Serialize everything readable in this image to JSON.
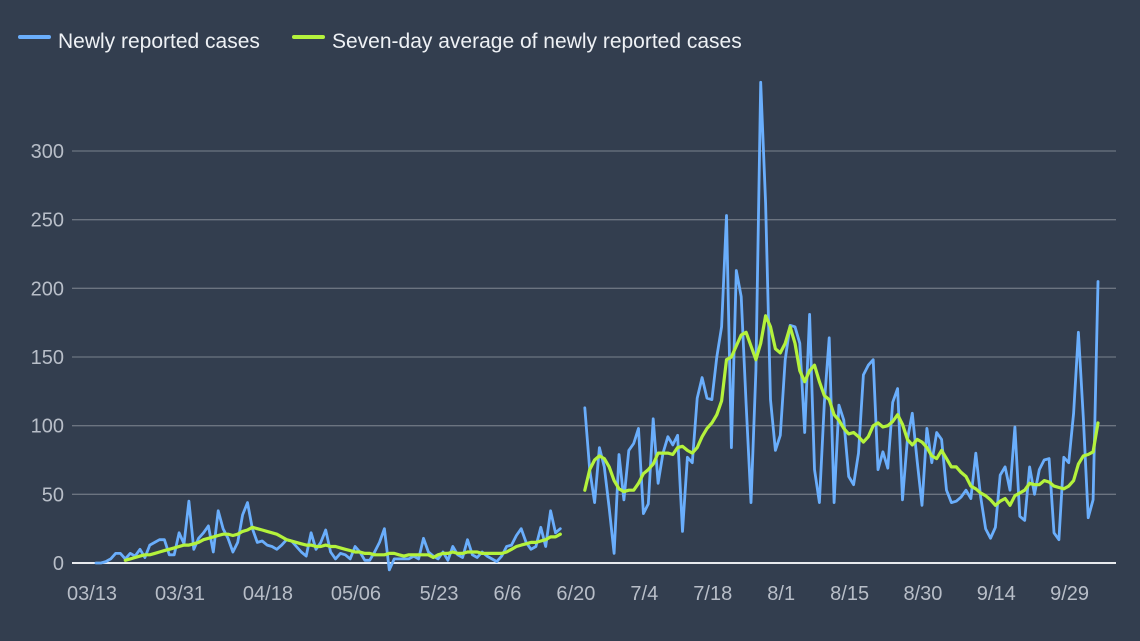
{
  "chart_data": {
    "type": "line",
    "title": "",
    "xlabel": "",
    "ylabel": "",
    "ylim": [
      0,
      350
    ],
    "yticks": [
      0,
      50,
      100,
      150,
      200,
      250,
      300
    ],
    "grid": true,
    "legend_placement": "top-left",
    "colors": {
      "background": "#333e4f",
      "grid": "#6c7480",
      "baseline": "#e8eaee",
      "new_cases": "#6aaefc",
      "average": "#b4f23c"
    },
    "xticks": [
      {
        "label": "03/13",
        "date": "03/13"
      },
      {
        "label": "03/31",
        "date": "03/31"
      },
      {
        "label": "04/18",
        "date": "04/18"
      },
      {
        "label": "05/06",
        "date": "05/06"
      },
      {
        "label": "5/23",
        "date": "05/23"
      },
      {
        "label": "6/6",
        "date": "06/06"
      },
      {
        "label": "6/20",
        "date": "06/20"
      },
      {
        "label": "7/4",
        "date": "07/04"
      },
      {
        "label": "7/18",
        "date": "07/18"
      },
      {
        "label": "8/1",
        "date": "08/01"
      },
      {
        "label": "8/15",
        "date": "08/15"
      },
      {
        "label": "8/30",
        "date": "08/30"
      },
      {
        "label": "9/14",
        "date": "09/14"
      },
      {
        "label": "9/29",
        "date": "09/29"
      }
    ],
    "x": [
      "03/13",
      "03/14",
      "03/15",
      "03/16",
      "03/17",
      "03/18",
      "03/19",
      "03/20",
      "03/21",
      "03/22",
      "03/23",
      "03/24",
      "03/25",
      "03/26",
      "03/27",
      "03/28",
      "03/29",
      "03/30",
      "03/31",
      "04/01",
      "04/02",
      "04/03",
      "04/04",
      "04/05",
      "04/06",
      "04/07",
      "04/08",
      "04/09",
      "04/10",
      "04/11",
      "04/12",
      "04/13",
      "04/14",
      "04/15",
      "04/16",
      "04/17",
      "04/18",
      "04/19",
      "04/20",
      "04/21",
      "04/22",
      "04/23",
      "04/24",
      "04/25",
      "04/26",
      "04/27",
      "04/28",
      "04/29",
      "04/30",
      "05/01",
      "05/02",
      "05/03",
      "05/04",
      "05/05",
      "05/06",
      "05/07",
      "05/08",
      "05/09",
      "05/10",
      "05/11",
      "05/12",
      "05/13",
      "05/14",
      "05/15",
      "05/16",
      "05/17",
      "05/18",
      "05/19",
      "05/20",
      "05/21",
      "05/22",
      "05/23",
      "05/24",
      "05/25",
      "05/26",
      "05/27",
      "05/28",
      "05/29",
      "05/30",
      "05/31",
      "06/01",
      "06/02",
      "06/03",
      "06/04",
      "06/05",
      "06/06",
      "06/07",
      "06/08",
      "06/09",
      "06/10",
      "06/11",
      "06/12",
      "06/13",
      "06/14",
      "06/15",
      "06/16",
      "06/17",
      "06/18",
      "06/19",
      "06/20",
      "06/21",
      "06/22",
      "06/23",
      "06/24",
      "06/25",
      "06/26",
      "06/27",
      "06/28",
      "06/29",
      "06/30",
      "07/01",
      "07/02",
      "07/03",
      "07/04",
      "07/05",
      "07/06",
      "07/07",
      "07/08",
      "07/09",
      "07/10",
      "07/11",
      "07/12",
      "07/13",
      "07/14",
      "07/15",
      "07/16",
      "07/17",
      "07/18",
      "07/19",
      "07/20",
      "07/21",
      "07/22",
      "07/23",
      "07/24",
      "07/25",
      "07/26",
      "07/27",
      "07/28",
      "07/29",
      "07/30",
      "07/31",
      "08/01",
      "08/02",
      "08/03",
      "08/04",
      "08/05",
      "08/06",
      "08/07",
      "08/08",
      "08/09",
      "08/10",
      "08/11",
      "08/12",
      "08/13",
      "08/14",
      "08/15",
      "08/16",
      "08/17",
      "08/18",
      "08/19",
      "08/20",
      "08/21",
      "08/22",
      "08/23",
      "08/24",
      "08/25",
      "08/26",
      "08/27",
      "08/28",
      "08/29",
      "08/30",
      "08/31",
      "09/01",
      "09/02",
      "09/03",
      "09/04",
      "09/05",
      "09/06",
      "09/07",
      "09/08",
      "09/09",
      "09/10",
      "09/11",
      "09/12",
      "09/13",
      "09/14",
      "09/15",
      "09/16",
      "09/17",
      "09/18",
      "09/19",
      "09/20",
      "09/21",
      "09/22",
      "09/23",
      "09/24",
      "09/25",
      "09/26",
      "09/27",
      "09/28",
      "09/29",
      "09/30",
      "10/01",
      "10/02",
      "10/03",
      "10/04"
    ],
    "series": [
      {
        "name": "Newly reported cases",
        "key": "new_cases",
        "values": [
          0,
          0,
          1,
          3,
          7,
          7,
          3,
          7,
          5,
          10,
          4,
          13,
          15,
          17,
          17,
          6,
          6,
          22,
          14,
          45,
          10,
          18,
          22,
          27,
          8,
          38,
          25,
          18,
          8,
          15,
          35,
          44,
          25,
          15,
          16,
          13,
          12,
          10,
          13,
          17,
          16,
          12,
          8,
          5,
          22,
          10,
          15,
          24,
          8,
          3,
          7,
          6,
          3,
          12,
          8,
          2,
          2,
          8,
          15,
          25,
          -5,
          3,
          3,
          3,
          3,
          5,
          3,
          18,
          8,
          5,
          3,
          8,
          2,
          12,
          6,
          4,
          17,
          6,
          4,
          8,
          5,
          3,
          1,
          5,
          12,
          13,
          20,
          25,
          15,
          10,
          12,
          26,
          12,
          38,
          22,
          25,
          null,
          null,
          null,
          null,
          113,
          68,
          44,
          84,
          70,
          40,
          7,
          79,
          46,
          82,
          87,
          98,
          36,
          43,
          105,
          58,
          80,
          92,
          86,
          93,
          23,
          77,
          73,
          120,
          135,
          120,
          119,
          150,
          172,
          253,
          84,
          213,
          194,
          116,
          44,
          140,
          350,
          262,
          119,
          82,
          93,
          148,
          173,
          172,
          160,
          95,
          181,
          68,
          44,
          116,
          164,
          44,
          115,
          104,
          63,
          57,
          80,
          137,
          144,
          148,
          68,
          81,
          69,
          117,
          127,
          46,
          90,
          109,
          74,
          42,
          98,
          73,
          95,
          90,
          53,
          44,
          45,
          48,
          53,
          47,
          80,
          48,
          25,
          18,
          26,
          64,
          70,
          53,
          99,
          34,
          31,
          70,
          50,
          68,
          75,
          76,
          22,
          17,
          77,
          73,
          109,
          168,
          106,
          33,
          46,
          205
        ]
      },
      {
        "name": "Seven-day average of newly reported cases",
        "key": "average",
        "values": [
          null,
          null,
          null,
          null,
          null,
          null,
          2,
          3,
          4,
          5,
          6,
          6,
          7,
          8,
          9,
          10,
          11,
          12,
          13,
          13,
          14,
          15,
          17,
          18,
          19,
          20,
          21,
          21,
          20,
          21,
          23,
          24,
          26,
          25,
          24,
          23,
          22,
          21,
          19,
          17,
          16,
          15,
          14,
          13,
          13,
          12,
          12,
          13,
          12,
          12,
          11,
          10,
          9,
          8,
          8,
          7,
          7,
          6,
          6,
          6,
          7,
          7,
          6,
          5,
          6,
          6,
          6,
          6,
          6,
          4,
          6,
          7,
          7,
          8,
          7,
          7,
          8,
          8,
          8,
          7,
          7,
          7,
          7,
          7,
          8,
          10,
          12,
          13,
          14,
          15,
          15,
          16,
          17,
          19,
          19,
          21,
          null,
          null,
          null,
          null,
          53,
          68,
          75,
          78,
          76,
          70,
          60,
          54,
          52,
          53,
          53,
          58,
          65,
          68,
          72,
          80,
          80,
          80,
          79,
          84,
          85,
          82,
          80,
          84,
          92,
          98,
          102,
          108,
          118,
          148,
          150,
          158,
          166,
          168,
          158,
          148,
          160,
          180,
          172,
          156,
          153,
          160,
          172,
          160,
          140,
          132,
          140,
          144,
          132,
          122,
          119,
          108,
          104,
          98,
          94,
          95,
          92,
          88,
          92,
          100,
          102,
          99,
          100,
          103,
          108,
          101,
          90,
          86,
          90,
          88,
          84,
          78,
          76,
          82,
          76,
          70,
          70,
          66,
          63,
          56,
          54,
          51,
          49,
          46,
          42,
          45,
          47,
          42,
          49,
          51,
          53,
          58,
          57,
          57,
          60,
          59,
          56,
          55,
          54,
          56,
          60,
          72,
          78,
          79,
          81,
          102
        ]
      }
    ]
  }
}
